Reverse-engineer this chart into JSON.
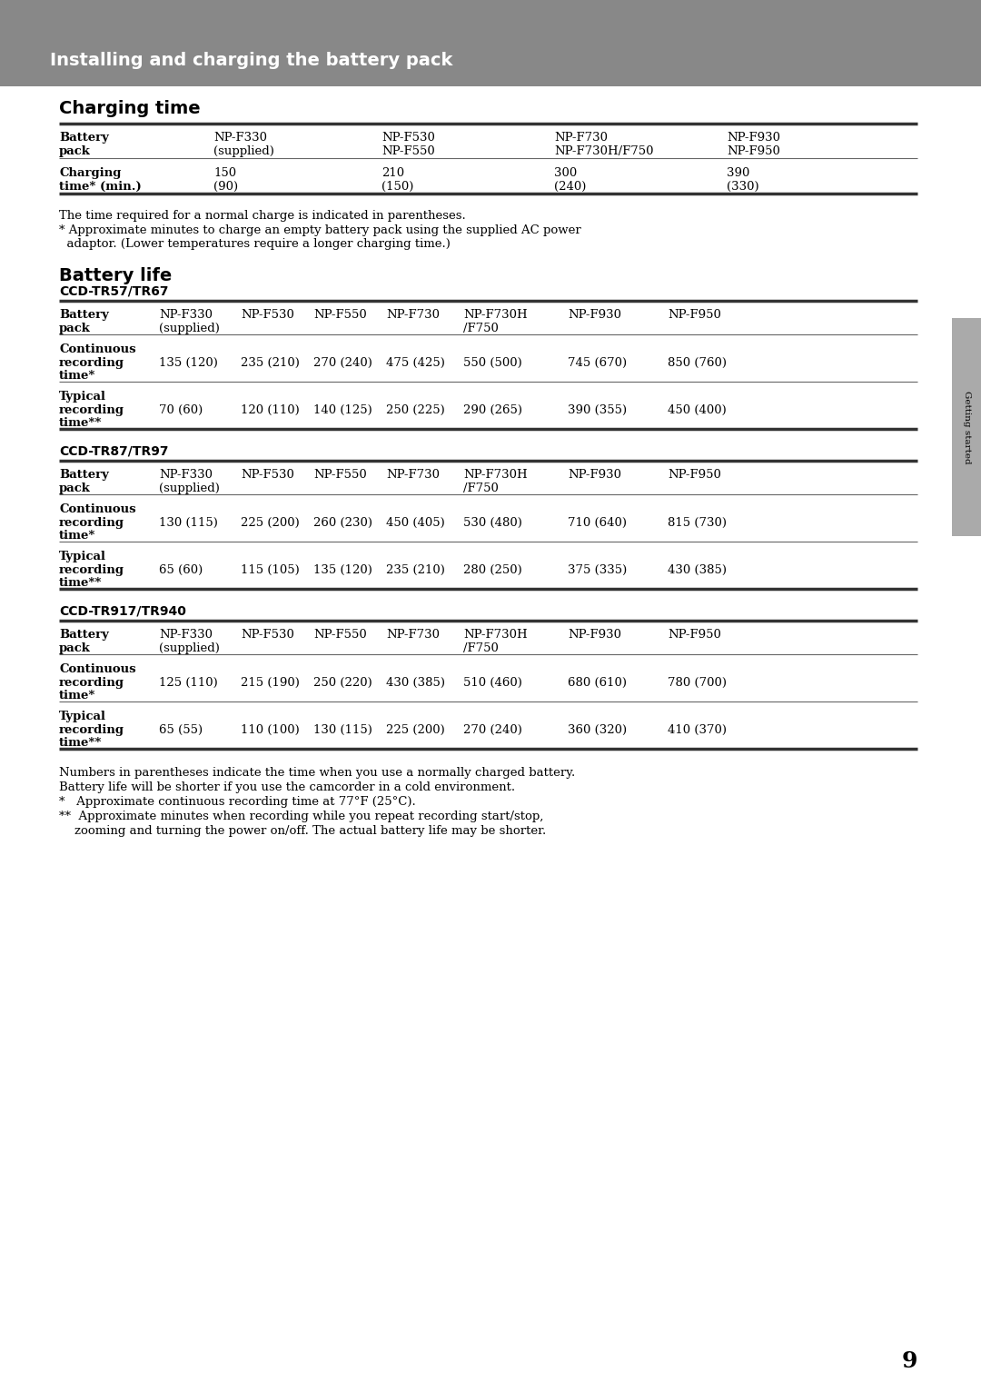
{
  "header_text": "Installing and charging the battery pack",
  "header_bg": "#888888",
  "header_text_color": "#ffffff",
  "page_bg": "#ffffff",
  "page_number": "9",
  "side_tab_text": "Getting started",
  "charging_time_title": "Charging time",
  "charging_time_note1": "The time required for a normal charge is indicated in parentheses.",
  "charging_time_note2": "* Approximate minutes to charge an empty battery pack using the supplied AC power",
  "charging_time_note3": "  adaptor. (Lower temperatures require a longer charging time.)",
  "battery_life_title": "Battery life",
  "model1_title": "CCD-TR57/TR67",
  "model1_cont_values": [
    "135 (120)",
    "235 (210)",
    "270 (240)",
    "475 (425)",
    "550 (500)",
    "745 (670)",
    "850 (760)"
  ],
  "model1_typ_values": [
    "70 (60)",
    "120 (110)",
    "140 (125)",
    "250 (225)",
    "290 (265)",
    "390 (355)",
    "450 (400)"
  ],
  "model2_title": "CCD-TR87/TR97",
  "model2_cont_values": [
    "130 (115)",
    "225 (200)",
    "260 (230)",
    "450 (405)",
    "530 (480)",
    "710 (640)",
    "815 (730)"
  ],
  "model2_typ_values": [
    "65 (60)",
    "115 (105)",
    "135 (120)",
    "235 (210)",
    "280 (250)",
    "375 (335)",
    "430 (385)"
  ],
  "model3_title": "CCD-TR917/TR940",
  "model3_cont_values": [
    "125 (110)",
    "215 (190)",
    "250 (220)",
    "430 (385)",
    "510 (460)",
    "680 (610)",
    "780 (700)"
  ],
  "model3_typ_values": [
    "65 (55)",
    "110 (100)",
    "130 (115)",
    "225 (200)",
    "270 (240)",
    "360 (320)",
    "410 (370)"
  ],
  "footer_note1": "Numbers in parentheses indicate the time when you use a normally charged battery.",
  "footer_note2": "Battery life will be shorter if you use the camcorder in a cold environment.",
  "footer_note3": "*   Approximate continuous recording time at 77°F (25°C).",
  "footer_note4": "**  Approximate minutes when recording while you repeat recording start/stop,",
  "footer_note5": "    zooming and turning the power on/off. The actual battery life may be shorter."
}
